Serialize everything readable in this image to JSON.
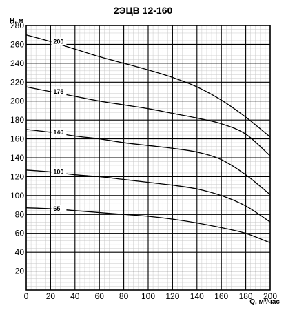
{
  "chart_data": {
    "type": "line",
    "title": "2ЭЦВ 12-160",
    "xlabel": "Q, м³/час",
    "ylabel": "H, м",
    "xlim": [
      0,
      200
    ],
    "ylim": [
      0,
      280
    ],
    "x_ticks": [
      0,
      20,
      40,
      60,
      80,
      100,
      120,
      140,
      160,
      180,
      200
    ],
    "y_ticks": [
      20,
      40,
      60,
      80,
      100,
      120,
      140,
      160,
      180,
      200,
      220,
      240,
      260,
      280
    ],
    "grid": true,
    "series": [
      {
        "name": "200",
        "x": [
          0,
          20,
          40,
          60,
          80,
          100,
          120,
          140,
          160,
          180,
          200
        ],
        "y": [
          270,
          263,
          255,
          247,
          240,
          233,
          225,
          215,
          201,
          183,
          162
        ]
      },
      {
        "name": "175",
        "x": [
          0,
          20,
          40,
          60,
          80,
          100,
          120,
          140,
          160,
          180,
          200
        ],
        "y": [
          215,
          210,
          205,
          200,
          196,
          192,
          187,
          182,
          176,
          165,
          142
        ]
      },
      {
        "name": "140",
        "x": [
          0,
          20,
          40,
          60,
          80,
          100,
          120,
          140,
          160,
          180,
          200
        ],
        "y": [
          170,
          167,
          163,
          160,
          156,
          153,
          150,
          146,
          138,
          122,
          101
        ]
      },
      {
        "name": "100",
        "x": [
          0,
          20,
          40,
          60,
          80,
          100,
          120,
          140,
          160,
          180,
          200
        ],
        "y": [
          127,
          125,
          122,
          120,
          117,
          114,
          111,
          107,
          100,
          89,
          72
        ]
      },
      {
        "name": "65",
        "x": [
          0,
          20,
          40,
          60,
          80,
          100,
          120,
          140,
          160,
          180,
          200
        ],
        "y": [
          87,
          86,
          84,
          82,
          80,
          78,
          75,
          71,
          66,
          60,
          50
        ]
      }
    ]
  }
}
